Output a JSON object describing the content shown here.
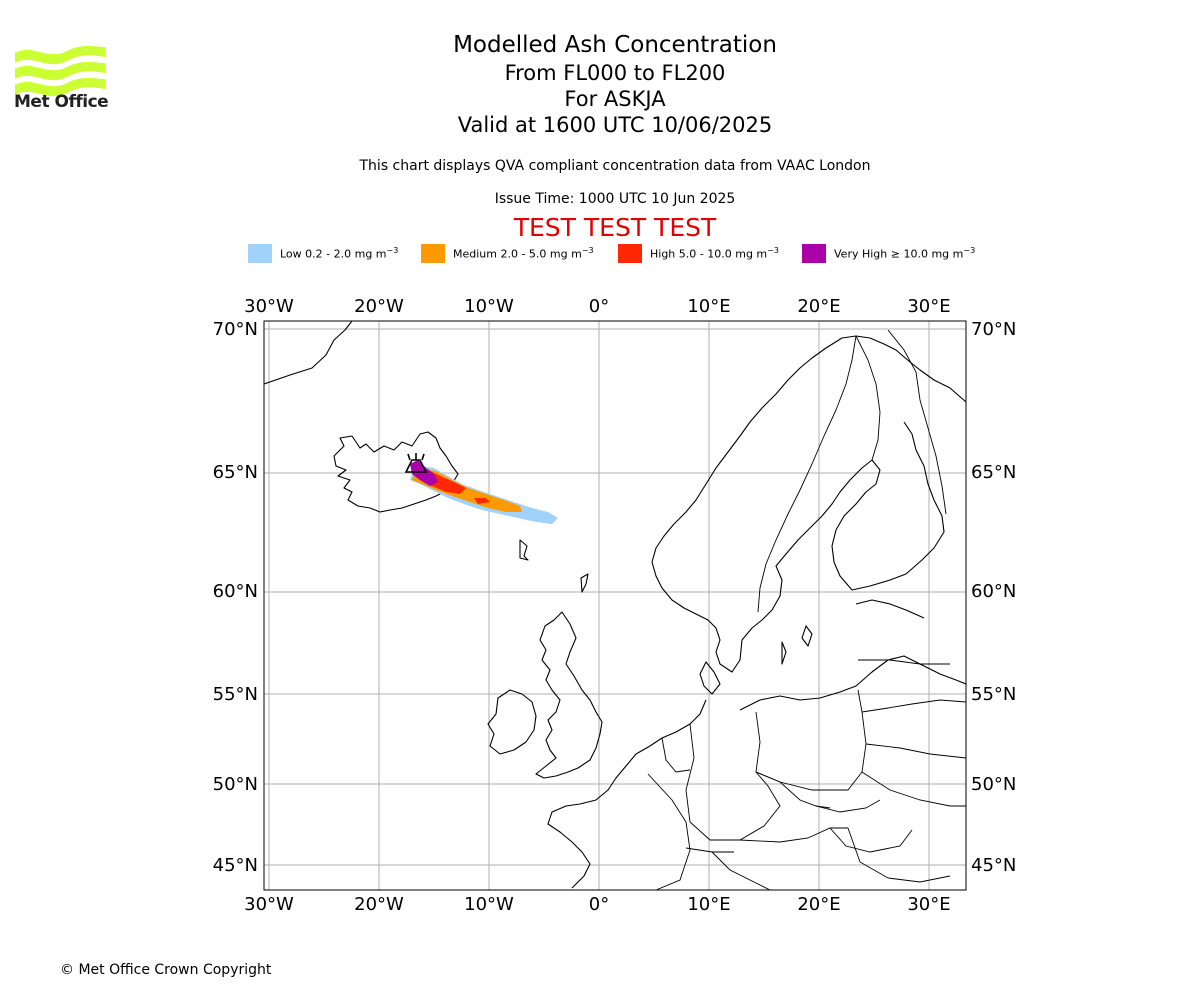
{
  "logo": {
    "text": "Met Office",
    "color": "#ccff33"
  },
  "title": {
    "main": "Modelled Ash Concentration",
    "levels": "From FL000 to FL200",
    "volcano": "For ASKJA",
    "valid": "Valid at 1600 UTC 10/06/2025"
  },
  "info": {
    "compliance": "This chart displays QVA compliant concentration data from VAAC London",
    "issue_time": "Issue Time: 1000 UTC 10 Jun 2025",
    "banner": "TEST TEST TEST"
  },
  "legend": [
    {
      "label": "Low 0.2 - 2.0 mg m",
      "sup": "−3",
      "color": "#a0d2fa"
    },
    {
      "label": "Medium 2.0 - 5.0 mg m",
      "sup": "−3",
      "color": "#ff9900"
    },
    {
      "label": "High 5.0 - 10.0 mg m",
      "sup": "−3",
      "color": "#ff2800"
    },
    {
      "label": "Very High  ≥  10.0 mg m",
      "sup": "−3",
      "color": "#aa00aa"
    }
  ],
  "map": {
    "lon_ticks": [
      "30°W",
      "20°W",
      "10°W",
      "0°",
      "10°E",
      "20°E",
      "30°E"
    ],
    "lat_ticks": [
      "70°N",
      "65°N",
      "60°N",
      "55°N",
      "50°N",
      "45°N"
    ],
    "volcano_marker": "Askja"
  },
  "footer": {
    "copyright": "© Met Office Crown Copyright"
  }
}
